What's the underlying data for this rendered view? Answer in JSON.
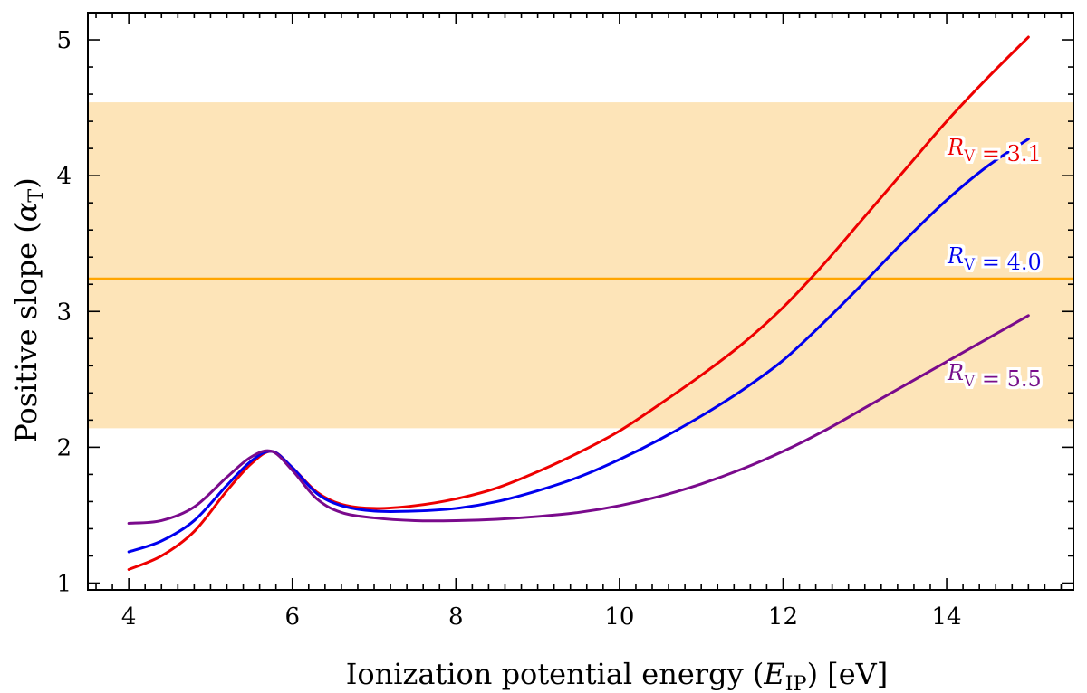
{
  "chart_data": {
    "type": "line",
    "xlabel": "Ionization potential energy (E_IP) [eV]",
    "ylabel": "Positive slope (α_T)",
    "xlim": [
      3.5,
      15.55
    ],
    "ylim": [
      0.95,
      5.2
    ],
    "x_ticks": [
      4,
      6,
      8,
      10,
      12,
      14
    ],
    "y_ticks": [
      1,
      2,
      3,
      4,
      5
    ],
    "grid": false,
    "legend": "inline labels at right",
    "horizontal_line": {
      "y": 3.24,
      "color": "#ffa500"
    },
    "band": {
      "y_low": 2.14,
      "y_high": 4.54,
      "color": "#fde4b8"
    },
    "series": [
      {
        "name": "R_V = 3.1",
        "color": "#ee0000",
        "x": [
          4.0,
          4.4,
          4.8,
          5.2,
          5.5,
          5.75,
          6.0,
          6.3,
          6.6,
          7.0,
          7.5,
          8.0,
          8.5,
          9.0,
          9.5,
          10.0,
          10.5,
          11.0,
          11.5,
          12.0,
          12.5,
          13.0,
          13.5,
          14.0,
          14.5,
          15.0
        ],
        "y": [
          1.1,
          1.2,
          1.38,
          1.68,
          1.88,
          1.97,
          1.85,
          1.67,
          1.58,
          1.55,
          1.57,
          1.62,
          1.7,
          1.82,
          1.96,
          2.12,
          2.32,
          2.53,
          2.76,
          3.03,
          3.35,
          3.7,
          4.05,
          4.4,
          4.72,
          5.02
        ]
      },
      {
        "name": "R_V = 4.0",
        "color": "#0000ee",
        "x": [
          4.0,
          4.4,
          4.8,
          5.2,
          5.5,
          5.75,
          6.0,
          6.3,
          6.6,
          7.0,
          7.5,
          8.0,
          8.5,
          9.0,
          9.5,
          10.0,
          10.5,
          11.0,
          11.5,
          12.0,
          12.5,
          13.0,
          13.5,
          14.0,
          14.5,
          15.0
        ],
        "y": [
          1.23,
          1.31,
          1.46,
          1.72,
          1.9,
          1.97,
          1.85,
          1.66,
          1.57,
          1.53,
          1.53,
          1.55,
          1.6,
          1.68,
          1.78,
          1.91,
          2.06,
          2.23,
          2.42,
          2.64,
          2.92,
          3.22,
          3.53,
          3.82,
          4.07,
          4.27
        ]
      },
      {
        "name": "R_V = 5.5",
        "color": "#7a0a8c",
        "x": [
          4.0,
          4.4,
          4.8,
          5.2,
          5.5,
          5.75,
          6.0,
          6.3,
          6.6,
          7.0,
          7.5,
          8.0,
          8.5,
          9.0,
          9.5,
          10.0,
          10.5,
          11.0,
          11.5,
          12.0,
          12.5,
          13.0,
          13.5,
          14.0,
          14.5,
          15.0
        ],
        "y": [
          1.44,
          1.46,
          1.56,
          1.78,
          1.93,
          1.97,
          1.83,
          1.62,
          1.52,
          1.48,
          1.46,
          1.46,
          1.47,
          1.49,
          1.52,
          1.57,
          1.64,
          1.73,
          1.84,
          1.97,
          2.12,
          2.29,
          2.46,
          2.63,
          2.8,
          2.97
        ]
      }
    ]
  }
}
